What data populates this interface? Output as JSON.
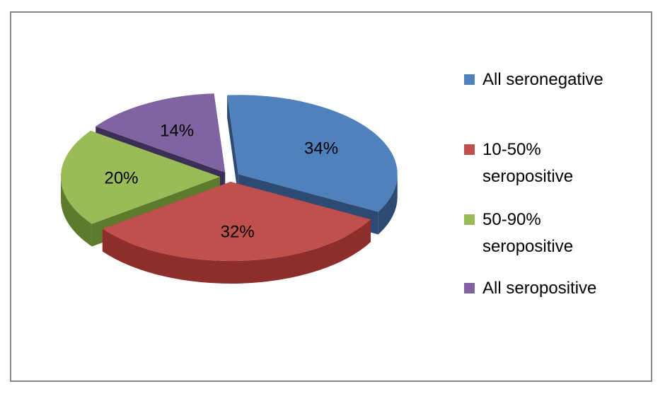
{
  "chart_data": {
    "type": "pie",
    "title": "",
    "three_d": true,
    "exploded": true,
    "legend_position": "right",
    "slices": [
      {
        "label": "All seronegative",
        "value": 34,
        "value_label": "34%",
        "color": "#4F81BD",
        "side_color": "#2C4A72"
      },
      {
        "label": "10-50%\nseropositive",
        "value": 32,
        "value_label": "32%",
        "color": "#C0504D",
        "side_color": "#8E2E2C"
      },
      {
        "label": "50-90%\nseropositive",
        "value": 20,
        "value_label": "20%",
        "color": "#9BBB59",
        "side_color": "#5E7A2C"
      },
      {
        "label": "All seropositive",
        "value": 14,
        "value_label": "14%",
        "color": "#8064A2",
        "side_color": "#3C2F55"
      }
    ]
  }
}
